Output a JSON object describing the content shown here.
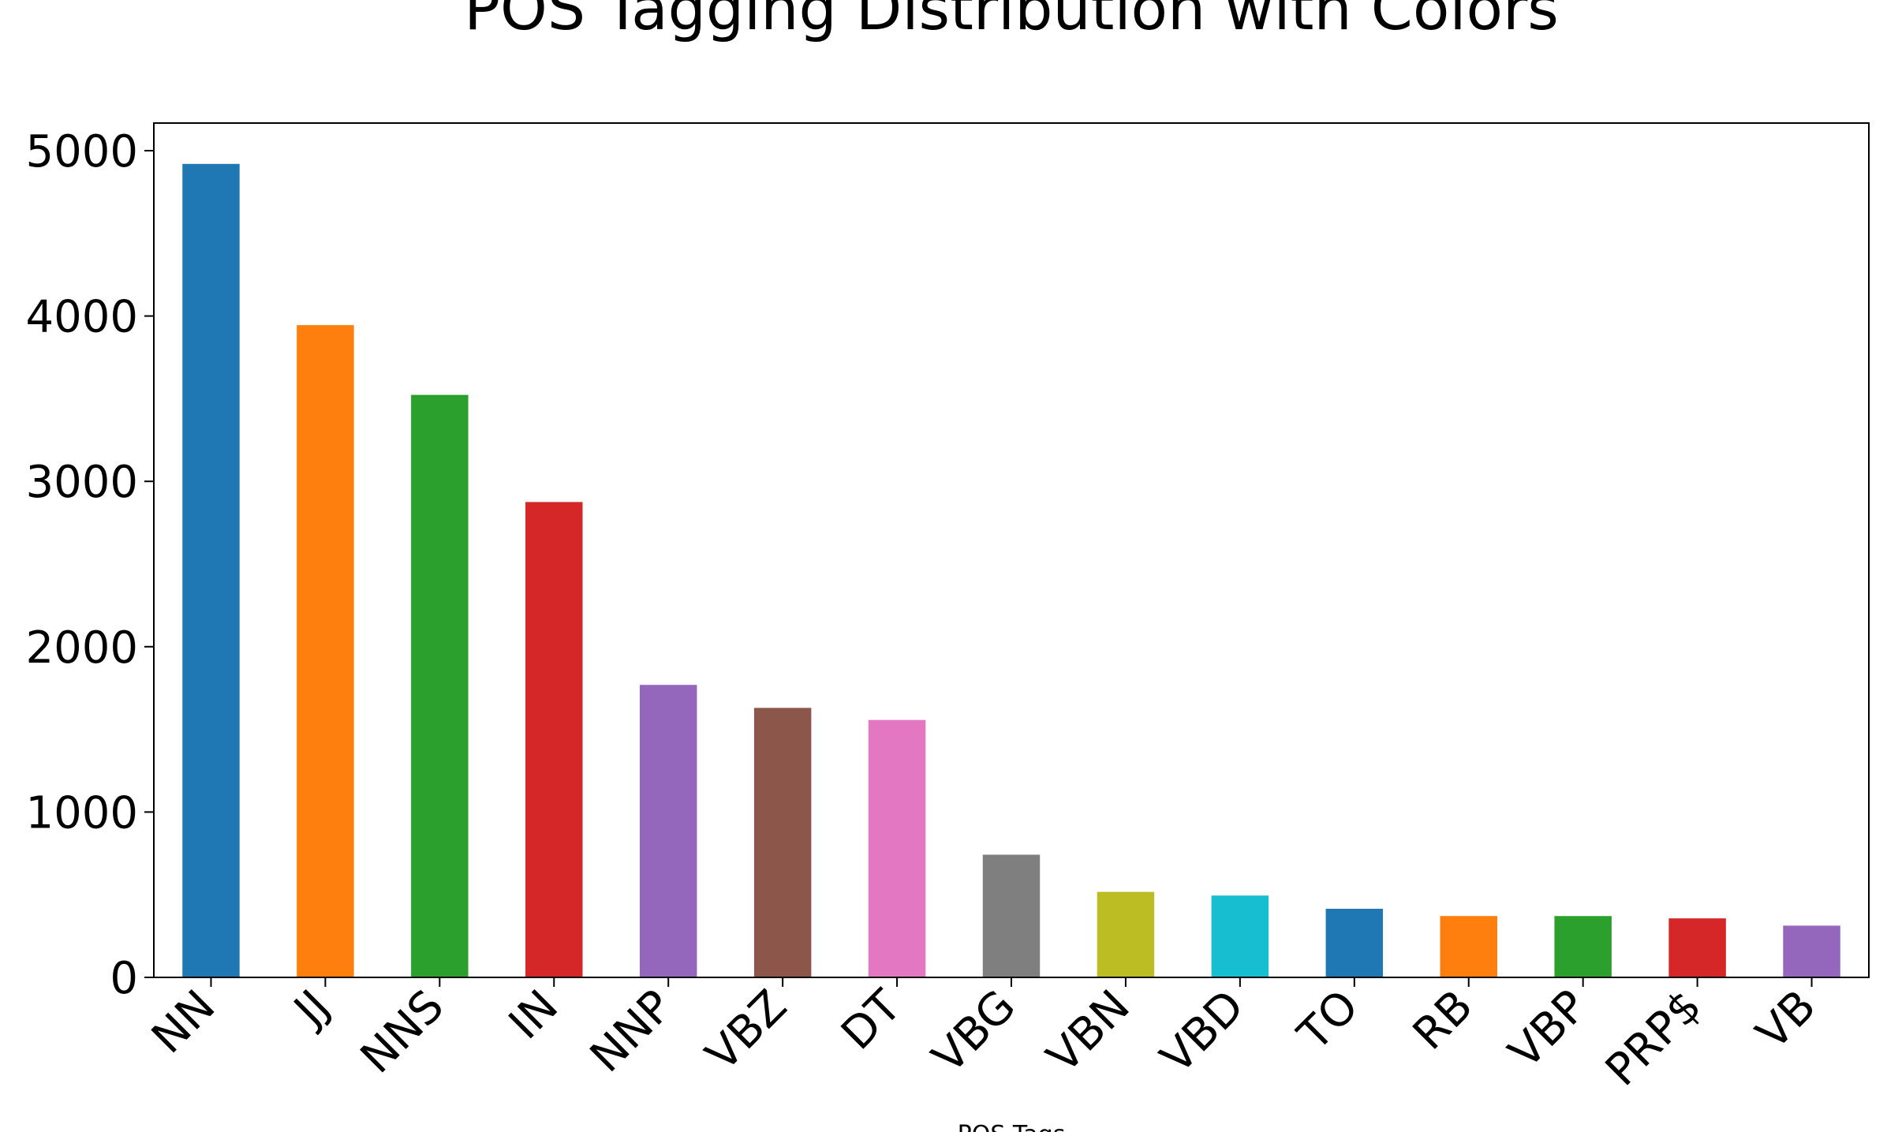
{
  "chart_data": {
    "type": "bar",
    "title": "POS Tagging Distribution with Colors",
    "x_label": "POS Tags",
    "categories": [
      "NN",
      "JJ",
      "NNS",
      "IN",
      "NNP",
      "VBZ",
      "DT",
      "VBG",
      "VBN",
      "VBD",
      "TO",
      "RB",
      "VBP",
      "PRP$",
      "VB"
    ],
    "values": [
      4920,
      3945,
      3523,
      2875,
      1769,
      1630,
      1557,
      742,
      517,
      495,
      415,
      371,
      371,
      357,
      313
    ],
    "colors": [
      "#1f77b4",
      "#ff7f0e",
      "#2ca02c",
      "#d62728",
      "#9467bd",
      "#8c564b",
      "#e377c2",
      "#7f7f7f",
      "#bcbd22",
      "#17becf",
      "#1f77b4",
      "#ff7f0e",
      "#2ca02c",
      "#d62728",
      "#9467bd"
    ],
    "ylim": [
      0,
      5167
    ],
    "yticks": [
      0,
      1000,
      2000,
      3000,
      4000,
      5000
    ],
    "grid": false
  }
}
